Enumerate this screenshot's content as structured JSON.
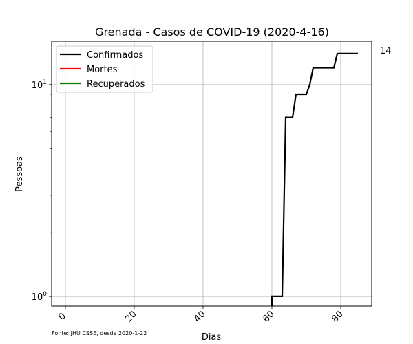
{
  "chart_data": {
    "type": "line",
    "title": "Grenada - Casos de COVID-19 (2020-4-16)",
    "xlabel": "Dias",
    "ylabel": "Pessoas",
    "yscale": "log",
    "xlim": [
      -4,
      89
    ],
    "ylim": [
      0.9,
      16
    ],
    "grid": true,
    "legend_position": "top-left",
    "x_ticks": [
      0,
      20,
      40,
      60,
      80
    ],
    "x_tick_labels": [
      "0",
      "20",
      "40",
      "60",
      "80"
    ],
    "y_ticks": [
      1,
      10
    ],
    "y_tick_labels": [
      {
        "base": "10",
        "exp": "0"
      },
      {
        "base": "10",
        "exp": "1"
      }
    ],
    "series": [
      {
        "name": "Confirmados",
        "color": "#000000",
        "x": [
          60,
          60,
          63,
          64,
          66,
          67,
          70,
          71,
          72,
          78,
          79,
          85
        ],
        "y": [
          0.9,
          1,
          1,
          7,
          7,
          9,
          9,
          10,
          12,
          12,
          14,
          14
        ]
      },
      {
        "name": "Mortes",
        "color": "#ff0000",
        "x": [],
        "y": []
      },
      {
        "name": "Recuperados",
        "color": "#008000",
        "x": [],
        "y": []
      }
    ],
    "annotation": "14",
    "source_note": "Fonte: JHU CSSE, desde 2020-1-22"
  }
}
